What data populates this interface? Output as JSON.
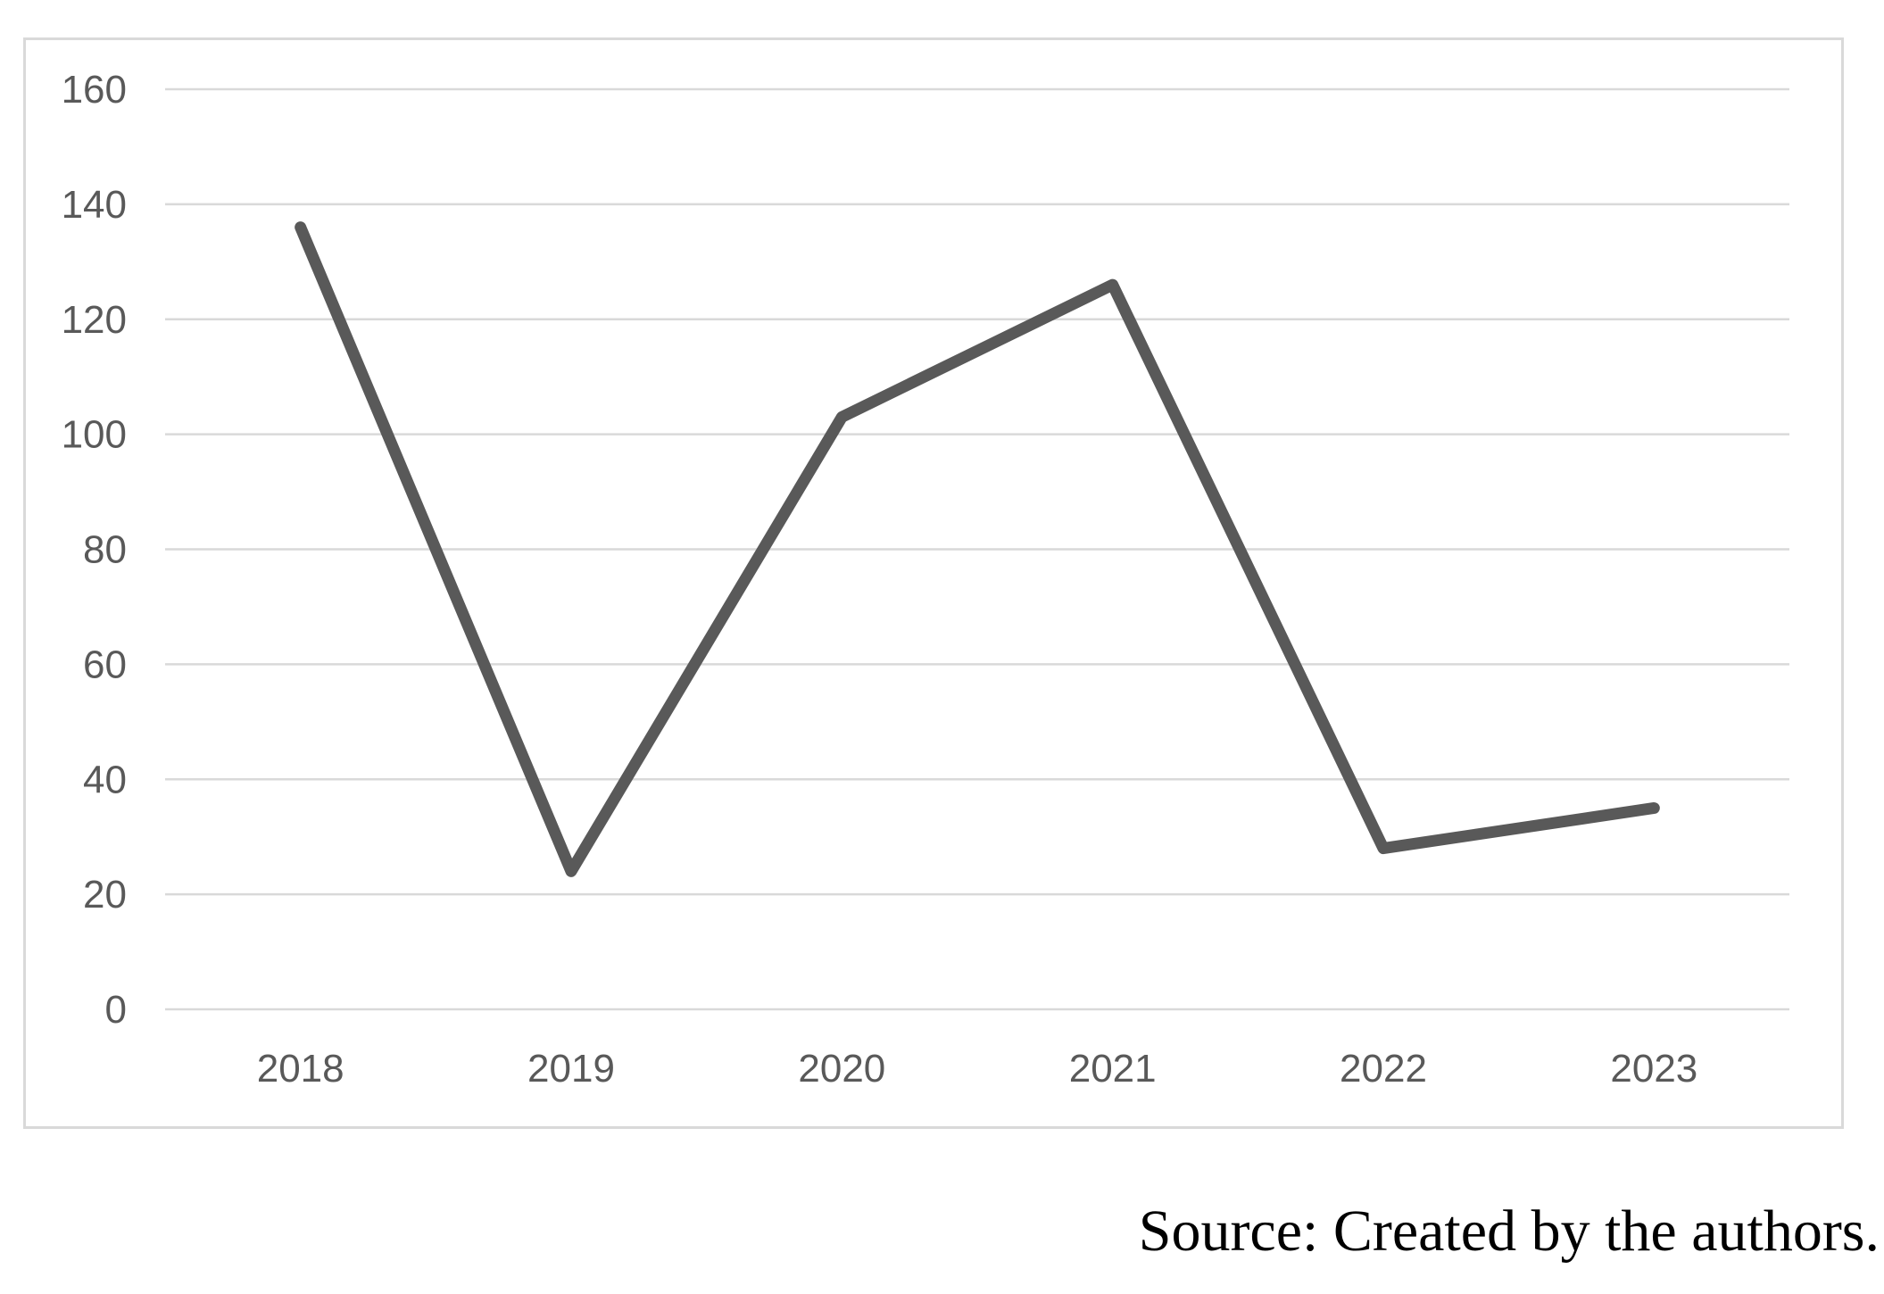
{
  "figure": {
    "caption": "Source: Created by the authors."
  },
  "chart_data": {
    "type": "line",
    "title": "",
    "categories": [
      "2018",
      "2019",
      "2020",
      "2021",
      "2022",
      "2023"
    ],
    "values": [
      136,
      24,
      103,
      126,
      28,
      35
    ],
    "xlabel": "",
    "ylabel": "",
    "ylim": [
      0,
      160
    ],
    "yticks": [
      0,
      20,
      40,
      60,
      80,
      100,
      120,
      140,
      160
    ],
    "grid": true,
    "legend": false,
    "colors": {
      "line": "#595959",
      "gridline": "#d9d9d9",
      "frame": "#d9d9d9",
      "tick_label": "#595959",
      "caption": "#000000",
      "background": "#ffffff"
    }
  }
}
